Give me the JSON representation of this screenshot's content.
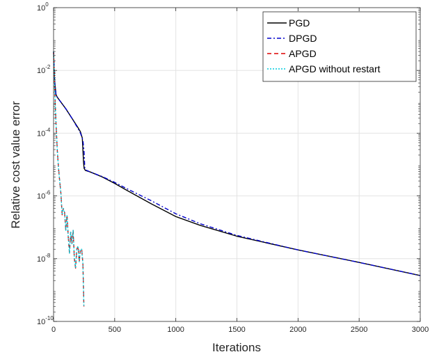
{
  "chart_data": {
    "type": "line",
    "title": "",
    "xlabel": "Iterations",
    "ylabel": "Relative cost value error",
    "xlim": [
      0,
      3000
    ],
    "ylim": [
      1e-10,
      1
    ],
    "y_scale": "log",
    "grid": true,
    "legend_position": "top-right",
    "x_ticks": [
      0,
      500,
      1000,
      1500,
      2000,
      2500,
      3000
    ],
    "x_tick_labels": [
      "0",
      "500",
      "1000",
      "1500",
      "2000",
      "2500",
      "3000"
    ],
    "y_ticks": [
      {
        "value": 1e-10,
        "base": "10",
        "exp": "-10"
      },
      {
        "value": 1e-08,
        "base": "10",
        "exp": "-8"
      },
      {
        "value": 1e-06,
        "base": "10",
        "exp": "-6"
      },
      {
        "value": 0.0001,
        "base": "10",
        "exp": "-4"
      },
      {
        "value": 0.01,
        "base": "10",
        "exp": "-2"
      },
      {
        "value": 1,
        "base": "10",
        "exp": "0"
      }
    ],
    "series": [
      {
        "name": "PGD",
        "color": "#000000",
        "dash": "solid",
        "x": [
          0,
          5,
          10,
          20,
          30,
          50,
          100,
          150,
          200,
          220,
          235,
          240,
          245,
          250,
          260,
          300,
          400,
          500,
          600,
          800,
          1000,
          1200,
          1500,
          2000,
          2500,
          3000
        ],
        "y": [
          0.04,
          0.01,
          0.004,
          0.0017,
          0.0014,
          0.0011,
          0.0006,
          0.0003,
          0.00015,
          0.00011,
          7e-05,
          3e-05,
          1.2e-05,
          7.5e-06,
          6.5e-06,
          5.8e-06,
          4e-06,
          2.5e-06,
          1.5e-06,
          5.6e-07,
          2.2e-07,
          1.15e-07,
          5.2e-08,
          1.9e-08,
          7.6e-09,
          2.9e-09
        ]
      },
      {
        "name": "DPGD",
        "color": "#0000cc",
        "dash": "6,3,2,3",
        "x": [
          0,
          5,
          10,
          20,
          30,
          50,
          100,
          150,
          200,
          220,
          240,
          250,
          255,
          260,
          300,
          400,
          500,
          600,
          800,
          1000,
          1200,
          1500,
          2000,
          2500,
          3000
        ],
        "y": [
          0.04,
          0.01,
          0.004,
          0.0017,
          0.0014,
          0.0011,
          0.0006,
          0.0003,
          0.00014,
          0.0001,
          6e-05,
          2.5e-05,
          8e-06,
          6.8e-06,
          5.8e-06,
          4.1e-06,
          2.7e-06,
          1.7e-06,
          7e-07,
          2.7e-07,
          1.3e-07,
          5.5e-08,
          1.9e-08,
          7.6e-09,
          2.9e-09
        ]
      },
      {
        "name": "APGD",
        "color": "#dd0000",
        "dash": "6,4",
        "x": [
          0,
          5,
          10,
          20,
          30,
          40,
          50,
          60,
          70,
          80,
          90,
          100,
          110,
          120,
          130,
          140,
          150,
          160,
          170,
          180,
          190,
          200,
          210,
          220,
          230,
          240,
          248
        ],
        "y": [
          0.04,
          0.01,
          0.002,
          0.0002,
          3e-05,
          8e-06,
          3e-06,
          1.2e-06,
          2.5e-07,
          4e-07,
          3e-07,
          8e-08,
          2.5e-07,
          5e-08,
          1.5e-08,
          7e-08,
          3e-08,
          8e-08,
          1e-08,
          5e-09,
          2e-08,
          2.5e-08,
          8e-09,
          2e-08,
          2e-08,
          7e-09,
          3e-10
        ]
      },
      {
        "name": "APGD without restart",
        "color": "#00ccdd",
        "dash": "2,2",
        "x": [
          0,
          5,
          10,
          20,
          30,
          40,
          50,
          60,
          70,
          80,
          90,
          100,
          110,
          120,
          130,
          140,
          150,
          160,
          170,
          180,
          190,
          200,
          210,
          220,
          230,
          240,
          248
        ],
        "y": [
          0.04,
          0.01,
          0.002,
          0.0002,
          3e-05,
          8e-06,
          3e-06,
          1.2e-06,
          2.5e-07,
          4e-07,
          3e-07,
          8e-08,
          2.5e-07,
          5e-08,
          1.5e-08,
          7e-08,
          3e-08,
          8e-08,
          1e-08,
          5e-09,
          2e-08,
          2.5e-08,
          8e-09,
          2e-08,
          2e-08,
          7e-09,
          3e-10
        ]
      }
    ]
  }
}
